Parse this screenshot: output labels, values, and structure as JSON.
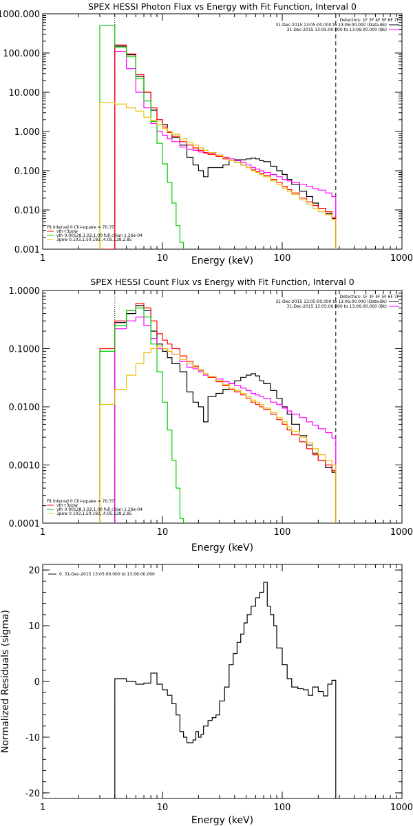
{
  "chart_data": [
    {
      "type": "line",
      "title": "SPEX HESSI Photon Flux vs Energy with Fit Function, Interval 0",
      "xlabel": "Energy (keV)",
      "ylabel": "",
      "xscale": "log",
      "yscale": "log",
      "xlim": [
        1,
        1000
      ],
      "ylim": [
        0.001,
        1000
      ],
      "xticks": [
        1,
        10,
        100,
        1000
      ],
      "xtick_labels": [
        "1",
        "10",
        "100",
        "1000"
      ],
      "yticks": [
        0.001,
        0.01,
        0.1,
        1,
        10,
        100,
        1000
      ],
      "ytick_labels": [
        "0.001",
        "0.010",
        "0.100",
        "1.000",
        "10.000",
        "100.000",
        "1000.000"
      ],
      "legend_top": {
        "header": "Detectors: 1F 3F 4F 5F 6F 7F",
        "entries": [
          {
            "text": "31-Dec-2015 13:05:00.000 to 13:06:00.000 (Data-Bk)",
            "color": "#000000"
          },
          {
            "text": "31-Dec-2015 13:05:00.000 to 13:06:00.000 (Bk)",
            "color": "#ff00ff"
          }
        ]
      },
      "legend_bottom": {
        "header": "Fit Interval 0   Chi-square = 70.37",
        "entries": [
          {
            "text": "vth+3pow",
            "color": "#ff0000"
          },
          {
            "text": "vth 0.00128,1.02,1.00  full chian 1.26e-04",
            "color": "#00cc00"
          },
          {
            "text": "3pow 0.103,1.50,192.,4.05,128,2.85",
            "color": "#e6c000"
          }
        ]
      },
      "vlines": [
        {
          "x": 4,
          "style": "dotted",
          "color": "#000000"
        },
        {
          "x": 280,
          "style": "dashed",
          "color": "#000000"
        }
      ],
      "series": [
        {
          "name": "Data-Bk",
          "color": "#000000",
          "style": "step",
          "edges": [
            4,
            5,
            6,
            7,
            8,
            9,
            10,
            11,
            12,
            14,
            16,
            18,
            20,
            22,
            24,
            28,
            32,
            36,
            40,
            45,
            50,
            55,
            60,
            65,
            70,
            80,
            90,
            100,
            110,
            120,
            140,
            160,
            180,
            200,
            230,
            260,
            280
          ],
          "values": [
            150,
            90,
            25,
            10,
            3.5,
            2,
            1.5,
            1.0,
            0.7,
            0.45,
            0.22,
            0.14,
            0.1,
            0.07,
            0.12,
            0.12,
            0.14,
            0.18,
            0.19,
            0.19,
            0.2,
            0.21,
            0.2,
            0.18,
            0.17,
            0.13,
            0.1,
            0.08,
            0.06,
            0.045,
            0.03,
            0.022,
            0.015,
            0.011,
            0.008,
            0.006
          ]
        },
        {
          "name": "Bk",
          "color": "#ff00ff",
          "style": "step",
          "edges": [
            4,
            5,
            6,
            7,
            8,
            9,
            10,
            11,
            12,
            14,
            16,
            18,
            20,
            22,
            24,
            28,
            32,
            36,
            40,
            45,
            50,
            55,
            60,
            65,
            70,
            80,
            90,
            100,
            110,
            120,
            140,
            160,
            180,
            200,
            230,
            260,
            280
          ],
          "values": [
            110,
            40,
            10,
            4,
            1.6,
            1.0,
            0.8,
            0.65,
            0.55,
            0.4,
            0.35,
            0.33,
            0.3,
            0.28,
            0.27,
            0.25,
            0.22,
            0.2,
            0.18,
            0.16,
            0.14,
            0.12,
            0.11,
            0.1,
            0.09,
            0.08,
            0.07,
            0.06,
            0.055,
            0.05,
            0.045,
            0.04,
            0.035,
            0.032,
            0.027,
            0.022
          ]
        },
        {
          "name": "vth+3pow",
          "color": "#ff0000",
          "style": "step",
          "edges": [
            3,
            4,
            5,
            6,
            7,
            8,
            9,
            10,
            11,
            12,
            14,
            16,
            18,
            20,
            22,
            24,
            28,
            32,
            36,
            40,
            45,
            50,
            55,
            60,
            65,
            70,
            80,
            90,
            100,
            110,
            120,
            140,
            160,
            180,
            200,
            230,
            260,
            280
          ],
          "values": [
            0,
            160,
            95,
            28,
            10,
            4,
            2.0,
            1.3,
            0.95,
            0.75,
            0.55,
            0.45,
            0.38,
            0.33,
            0.29,
            0.26,
            0.23,
            0.2,
            0.18,
            0.16,
            0.14,
            0.12,
            0.105,
            0.095,
            0.085,
            0.075,
            0.06,
            0.05,
            0.04,
            0.033,
            0.027,
            0.02,
            0.016,
            0.013,
            0.011,
            0.009,
            0.0065
          ]
        },
        {
          "name": "vth",
          "color": "#00cc00",
          "style": "step",
          "edges": [
            3,
            4,
            5,
            6,
            7,
            8,
            9,
            10,
            11,
            12,
            13,
            14,
            15
          ],
          "values": [
            500,
            140,
            80,
            22,
            6,
            1.8,
            0.5,
            0.15,
            0.05,
            0.015,
            0.004,
            0.0015
          ]
        },
        {
          "name": "3pow",
          "color": "#e6c000",
          "style": "step",
          "edges": [
            3,
            4,
            5,
            6,
            7,
            8,
            9,
            10,
            11,
            12,
            14,
            16,
            18,
            20,
            22,
            24,
            28,
            32,
            36,
            40,
            45,
            50,
            55,
            60,
            65,
            70,
            80,
            90,
            100,
            110,
            120,
            140,
            160,
            180,
            200,
            230,
            260,
            280
          ],
          "values": [
            5.5,
            5,
            4,
            3.3,
            2.3,
            1.9,
            1.5,
            1.2,
            1.0,
            0.85,
            0.65,
            0.52,
            0.45,
            0.38,
            0.33,
            0.29,
            0.25,
            0.21,
            0.18,
            0.16,
            0.14,
            0.12,
            0.1,
            0.09,
            0.08,
            0.07,
            0.055,
            0.045,
            0.036,
            0.03,
            0.025,
            0.018,
            0.014,
            0.011,
            0.009,
            0.0075,
            0.0058
          ]
        }
      ]
    },
    {
      "type": "line",
      "title": "SPEX HESSI Count Flux vs Energy with Fit Function, Interval 0",
      "xlabel": "Energy (keV)",
      "ylabel": "",
      "xscale": "log",
      "yscale": "log",
      "xlim": [
        1,
        1000
      ],
      "ylim": [
        0.0001,
        1
      ],
      "xticks": [
        1,
        10,
        100,
        1000
      ],
      "xtick_labels": [
        "1",
        "10",
        "100",
        "1000"
      ],
      "yticks": [
        0.0001,
        0.001,
        0.01,
        0.1,
        1
      ],
      "ytick_labels": [
        "0.0001",
        "0.0010",
        "0.0100",
        "0.1000",
        "1.0000"
      ],
      "legend_top": {
        "header": "Detectors: 1F 3F 4F 5F 6F 7F",
        "entries": [
          {
            "text": "31-Dec-2015 13:05:00.000 to 13:06:00.000 (Data-Bk)",
            "color": "#000000"
          },
          {
            "text": "31-Dec-2015 13:05:00.000 to 13:06:00.000 (Bk)",
            "color": "#ff00ff"
          }
        ]
      },
      "legend_bottom": {
        "header": "Fit Interval 0   Chi-square = 70.37",
        "entries": [
          {
            "text": "vth+3pow",
            "color": "#ff0000"
          },
          {
            "text": "vth 0.00128,1.02,1.00  full chian 1.26e-04",
            "color": "#00cc00"
          },
          {
            "text": "3pow 0.103,1.50,192.,4.05,128,2.85",
            "color": "#e6c000"
          }
        ]
      },
      "vlines": [
        {
          "x": 4,
          "style": "dotted",
          "color": "#000000"
        },
        {
          "x": 280,
          "style": "dashed",
          "color": "#000000"
        }
      ],
      "series": [
        {
          "name": "Data-Bk",
          "color": "#000000",
          "style": "step",
          "edges": [
            4,
            5,
            6,
            7,
            8,
            9,
            10,
            11,
            12,
            14,
            16,
            18,
            20,
            22,
            24,
            28,
            32,
            36,
            40,
            45,
            50,
            55,
            60,
            65,
            70,
            80,
            90,
            100,
            110,
            120,
            140,
            160,
            180,
            200,
            230,
            260,
            280
          ],
          "values": [
            0.28,
            0.4,
            0.55,
            0.45,
            0.2,
            0.12,
            0.09,
            0.07,
            0.055,
            0.04,
            0.018,
            0.012,
            0.01,
            0.0055,
            0.015,
            0.017,
            0.02,
            0.025,
            0.028,
            0.032,
            0.035,
            0.037,
            0.034,
            0.028,
            0.025,
            0.019,
            0.014,
            0.01,
            0.0075,
            0.005,
            0.0032,
            0.0022,
            0.0016,
            0.0012,
            0.0009,
            0.00075
          ]
        },
        {
          "name": "Bk",
          "color": "#ff00ff",
          "style": "step",
          "edges": [
            4,
            5,
            6,
            7,
            8,
            9,
            10,
            11,
            12,
            14,
            16,
            18,
            20,
            22,
            24,
            28,
            32,
            36,
            40,
            45,
            50,
            55,
            60,
            65,
            70,
            80,
            90,
            100,
            110,
            120,
            140,
            160,
            180,
            200,
            230,
            260,
            280
          ],
          "values": [
            0.22,
            0.3,
            0.35,
            0.25,
            0.15,
            0.1,
            0.1,
            0.09,
            0.08,
            0.06,
            0.048,
            0.045,
            0.04,
            0.035,
            0.033,
            0.03,
            0.027,
            0.025,
            0.023,
            0.021,
            0.019,
            0.017,
            0.016,
            0.015,
            0.014,
            0.012,
            0.011,
            0.0095,
            0.0085,
            0.0075,
            0.0065,
            0.0055,
            0.0048,
            0.0042,
            0.0036,
            0.0029
          ]
        },
        {
          "name": "vth+3pow",
          "color": "#ff0000",
          "style": "step",
          "edges": [
            3,
            4,
            5,
            6,
            7,
            8,
            9,
            10,
            11,
            12,
            14,
            16,
            18,
            20,
            22,
            24,
            28,
            32,
            36,
            40,
            45,
            50,
            55,
            60,
            65,
            70,
            80,
            90,
            100,
            110,
            120,
            140,
            160,
            180,
            200,
            230,
            260,
            280
          ],
          "values": [
            0.1,
            0.3,
            0.45,
            0.6,
            0.5,
            0.3,
            0.18,
            0.14,
            0.12,
            0.1,
            0.075,
            0.06,
            0.05,
            0.043,
            0.037,
            0.032,
            0.027,
            0.023,
            0.02,
            0.018,
            0.016,
            0.014,
            0.012,
            0.011,
            0.01,
            0.009,
            0.0075,
            0.006,
            0.005,
            0.004,
            0.0033,
            0.0025,
            0.0019,
            0.0015,
            0.0012,
            0.001,
            0.0008
          ]
        },
        {
          "name": "vth",
          "color": "#00cc00",
          "style": "step",
          "edges": [
            3,
            4,
            5,
            6,
            7,
            8,
            9,
            10,
            11,
            12,
            13,
            14,
            15
          ],
          "values": [
            0.09,
            0.25,
            0.45,
            0.5,
            0.35,
            0.12,
            0.04,
            0.012,
            0.004,
            0.0012,
            0.0004,
            0.00012
          ]
        },
        {
          "name": "3pow",
          "color": "#e6c000",
          "style": "step",
          "edges": [
            3,
            4,
            5,
            6,
            7,
            8,
            9,
            10,
            11,
            12,
            14,
            16,
            18,
            20,
            22,
            24,
            28,
            32,
            36,
            40,
            45,
            50,
            55,
            60,
            65,
            70,
            80,
            90,
            100,
            110,
            120,
            140,
            160,
            180,
            200,
            230,
            260,
            280
          ],
          "values": [
            0.011,
            0.02,
            0.035,
            0.055,
            0.085,
            0.1,
            0.11,
            0.1,
            0.09,
            0.08,
            0.065,
            0.055,
            0.048,
            0.042,
            0.037,
            0.033,
            0.028,
            0.024,
            0.021,
            0.019,
            0.017,
            0.015,
            0.013,
            0.012,
            0.011,
            0.0095,
            0.008,
            0.0065,
            0.0055,
            0.0045,
            0.0038,
            0.003,
            0.0024,
            0.0019,
            0.0015,
            0.0012,
            0.001
          ]
        }
      ]
    },
    {
      "type": "line",
      "title": "",
      "xlabel": "Energy (keV)",
      "ylabel": "Normalized Residuals (sigma)",
      "xscale": "log",
      "yscale": "linear",
      "xlim": [
        1,
        1000
      ],
      "ylim": [
        -21,
        21
      ],
      "xticks": [
        1,
        10,
        100,
        1000
      ],
      "xtick_labels": [
        "1",
        "10",
        "100",
        "1000"
      ],
      "yticks": [
        -20,
        -10,
        0,
        10,
        20
      ],
      "ytick_labels": [
        "-20",
        "-10",
        "0",
        "10",
        "20"
      ],
      "legend_top": {
        "header": "",
        "entries": [
          {
            "text": "0. 31-Dec-2015 13:05:00.000 to 13:06:00.000",
            "color": "#000000"
          }
        ]
      },
      "series": [
        {
          "name": "residuals",
          "color": "#000000",
          "style": "step_drop",
          "edges": [
            4,
            5,
            6,
            7,
            8,
            9,
            10,
            11,
            12,
            13,
            14,
            15,
            16,
            17,
            18,
            19,
            20,
            21,
            22,
            24,
            26,
            28,
            30,
            33,
            36,
            39,
            42,
            45,
            48,
            51,
            55,
            60,
            65,
            70,
            75,
            80,
            85,
            90,
            100,
            110,
            120,
            135,
            150,
            165,
            180,
            200,
            220,
            240,
            260,
            280
          ],
          "values": [
            0.5,
            0,
            -0.5,
            -0.3,
            1.5,
            -0.5,
            -1.5,
            -2.5,
            -4,
            -6,
            -9,
            -10,
            -11,
            -11,
            -10.5,
            -9,
            -10,
            -9.5,
            -8,
            -7,
            -6.5,
            -6,
            -3.5,
            -1,
            3,
            5,
            7,
            8.5,
            10.5,
            12,
            13.5,
            15,
            16,
            17.8,
            13.5,
            12,
            10,
            6,
            3,
            0.5,
            -1,
            -1.3,
            -1.5,
            -2.5,
            -1,
            -1.8,
            -2.6,
            -0.5,
            0.2
          ]
        }
      ]
    }
  ]
}
